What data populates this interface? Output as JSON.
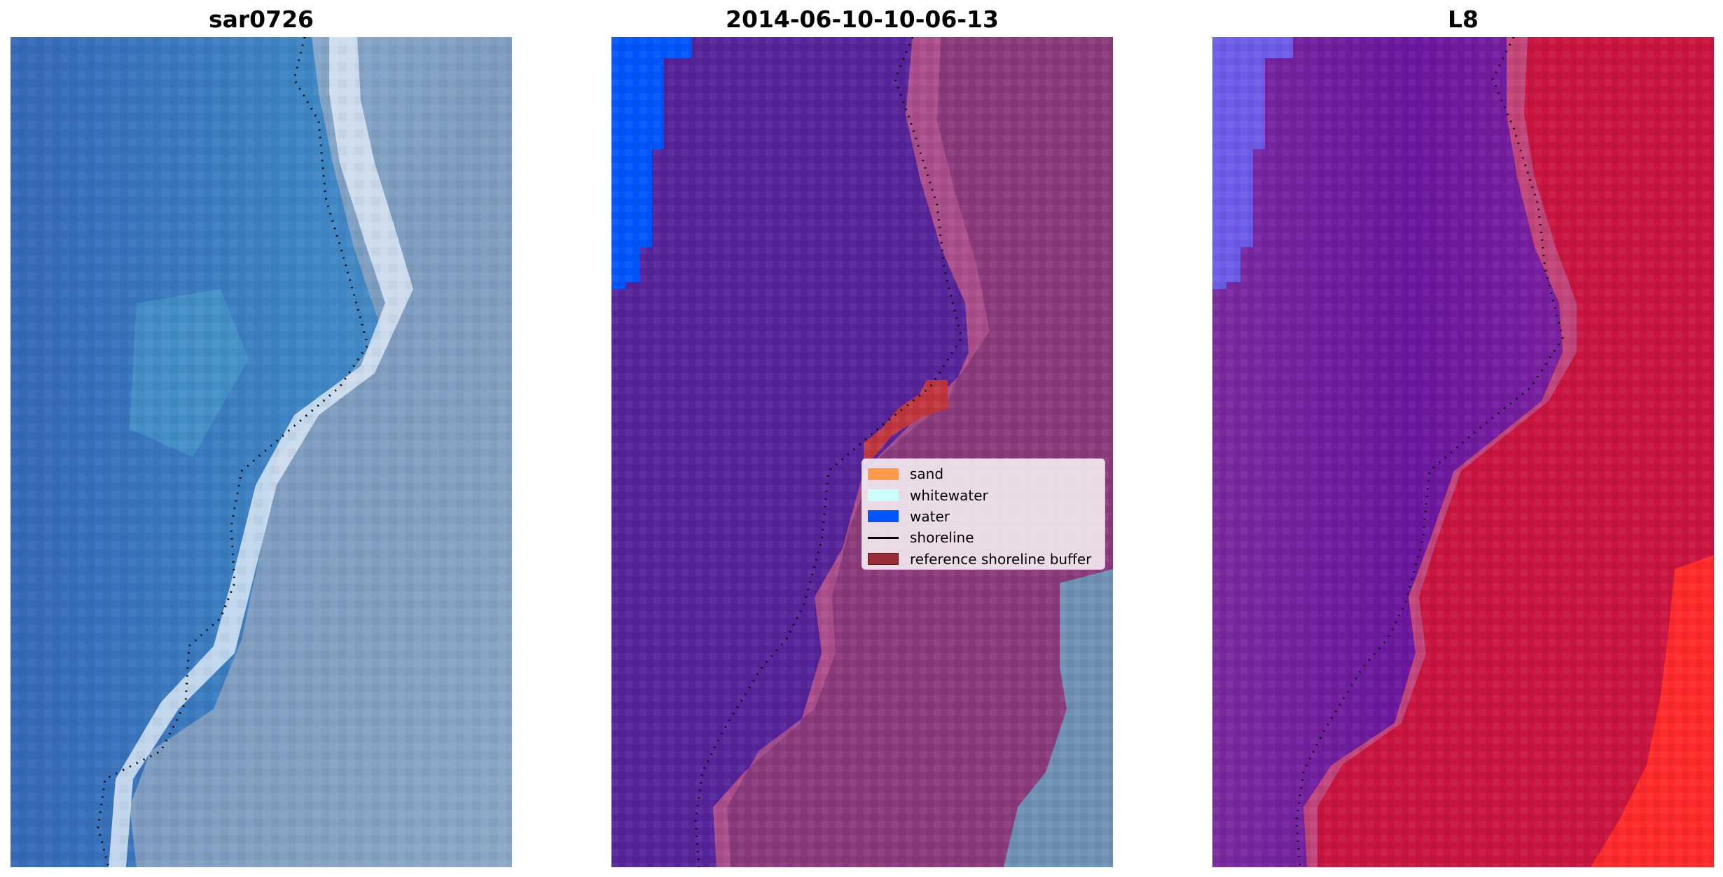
{
  "panels": [
    {
      "title": "sar0726"
    },
    {
      "title": "2014-06-10-10-06-13"
    },
    {
      "title": "L8"
    }
  ],
  "legend": {
    "items": [
      {
        "label": "sand",
        "color": "#ff9a4a"
      },
      {
        "label": "whitewater",
        "color": "#ccffff"
      },
      {
        "label": "water",
        "color": "#0055ff"
      },
      {
        "label": "shoreline",
        "color": "#000000"
      },
      {
        "label": "reference shoreline buffer",
        "color": "#9b2b35"
      }
    ]
  },
  "colors": {
    "ocean_rgb": "#2f6fb8",
    "land_rgb": "#8aa6c6",
    "surf_rgb": "#dfe8f3",
    "classified_water": "#0055ff",
    "classified_sea": "#55239a",
    "classified_land": "#8a3a7a",
    "buffer": "#c0363f",
    "l8_left": "#6e1e9e",
    "l8_right": "#c8143e"
  }
}
